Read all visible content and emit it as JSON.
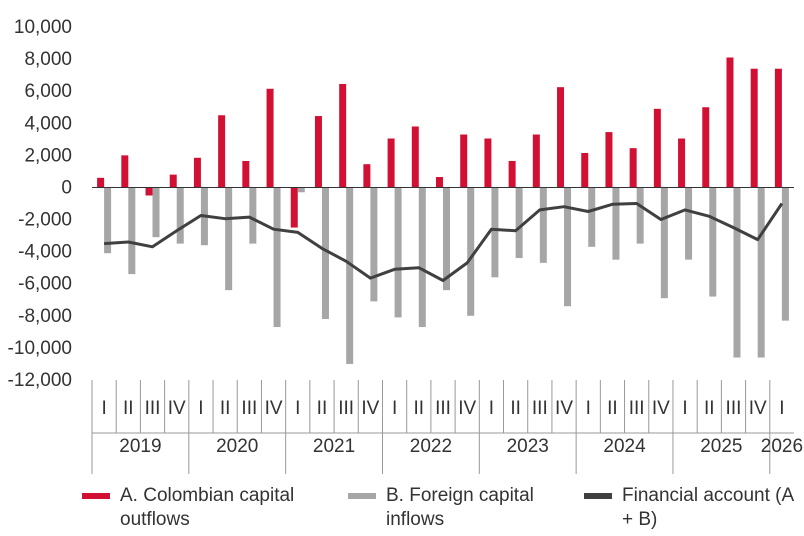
{
  "chart_data": {
    "type": "bar",
    "y_ticks": [
      "10,000",
      "8,000",
      "6,000",
      "4,000",
      "2,000",
      "0",
      "-2,000",
      "-4,000",
      "-6,000",
      "-8,000",
      "-10,000",
      "-12,000"
    ],
    "ylim": [
      -12000,
      10000
    ],
    "quarters": [
      "I",
      "II",
      "III",
      "IV",
      "I",
      "II",
      "III",
      "IV",
      "I",
      "II",
      "III",
      "IV",
      "I",
      "II",
      "III",
      "IV",
      "I",
      "II",
      "III",
      "IV",
      "I",
      "II",
      "III",
      "IV",
      "I",
      "II",
      "III",
      "IV",
      "I"
    ],
    "years": [
      {
        "label": "2019",
        "quarters": 4
      },
      {
        "label": "2020",
        "quarters": 4
      },
      {
        "label": "2021",
        "quarters": 4
      },
      {
        "label": "2022",
        "quarters": 4
      },
      {
        "label": "2023",
        "quarters": 4
      },
      {
        "label": "2024",
        "quarters": 4
      },
      {
        "label": "2025",
        "quarters": 4
      },
      {
        "label": "2026",
        "quarters": 1
      }
    ],
    "series": [
      {
        "name": "A. Colombian capital outflows",
        "kind": "bar",
        "color": "#d21034",
        "values": [
          600,
          2000,
          -500,
          800,
          1850,
          4500,
          1650,
          6150,
          -2500,
          4450,
          6450,
          1450,
          3050,
          3800,
          650,
          3300,
          3050,
          1650,
          3300,
          6250,
          2150,
          3450,
          2450,
          4900,
          3050,
          5000,
          8100,
          7400,
          7400
        ]
      },
      {
        "name": "B. Foreign capital inflows",
        "kind": "bar",
        "color": "#a6a6a6",
        "values": [
          -4100,
          -5400,
          -3100,
          -3500,
          -3600,
          -6400,
          -3500,
          -8700,
          -300,
          -8200,
          -11000,
          -7100,
          -8100,
          -8700,
          -6400,
          -8000,
          -5600,
          -4400,
          -4700,
          -7400,
          -3700,
          -4500,
          -3500,
          -6900,
          -4500,
          -6800,
          -10600,
          -10600,
          -8300
        ]
      },
      {
        "name": "Financial account (A + B)",
        "kind": "line",
        "color": "#404040",
        "values": [
          -3500,
          -3400,
          -3700,
          -2700,
          -1750,
          -1950,
          -1850,
          -2600,
          -2800,
          -3800,
          -4600,
          -5650,
          -5100,
          -5000,
          -5800,
          -4700,
          -2600,
          -2700,
          -1400,
          -1200,
          -1500,
          -1050,
          -1000,
          -2000,
          -1400,
          -1800,
          -2500,
          -3250,
          -1000
        ]
      }
    ]
  }
}
